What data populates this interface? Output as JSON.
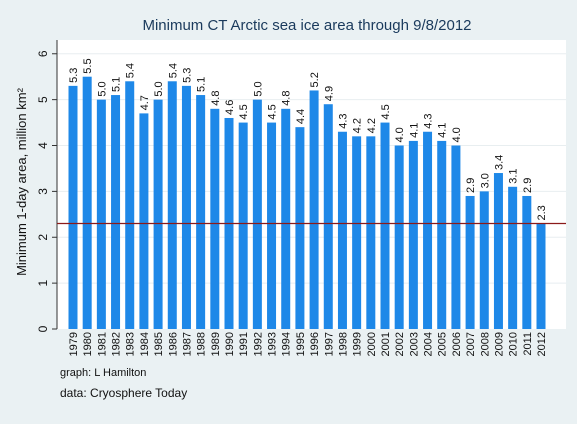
{
  "chart_data": {
    "type": "bar",
    "title": "Minimum CT Arctic sea ice area through 9/8/2012",
    "ylabel": "Minimum 1-day area, million km²",
    "xlabel": "",
    "ylim": [
      0,
      6.3
    ],
    "yticks": [
      0,
      1,
      2,
      3,
      4,
      5,
      6
    ],
    "grid": true,
    "legend": "none",
    "reference_line": 2.3,
    "categories": [
      "1979",
      "1980",
      "1981",
      "1982",
      "1983",
      "1984",
      "1985",
      "1986",
      "1987",
      "1988",
      "1989",
      "1990",
      "1991",
      "1992",
      "1993",
      "1994",
      "1995",
      "1996",
      "1997",
      "1998",
      "1999",
      "2000",
      "2001",
      "2002",
      "2003",
      "2004",
      "2005",
      "2006",
      "2007",
      "2008",
      "2009",
      "2010",
      "2011",
      "2012"
    ],
    "values": [
      5.3,
      5.5,
      5.0,
      5.1,
      5.4,
      4.7,
      5.0,
      5.4,
      5.3,
      5.1,
      4.8,
      4.6,
      4.5,
      5.0,
      4.5,
      4.8,
      4.4,
      5.2,
      4.9,
      4.3,
      4.2,
      4.2,
      4.5,
      4.0,
      4.1,
      4.3,
      4.1,
      4.0,
      2.9,
      3.0,
      3.4,
      3.1,
      2.9,
      2.3
    ],
    "labels": [
      "5.3",
      "5.5",
      "5.0",
      "5.1",
      "5.4",
      "4.7",
      "5.0",
      "5.4",
      "5.3",
      "5.1",
      "4.8",
      "4.6",
      "4.5",
      "5.0",
      "4.5",
      "4.8",
      "4.4",
      "5.2",
      "4.9",
      "4.3",
      "4.2",
      "4.2",
      "4.5",
      "4.0",
      "4.1",
      "4.3",
      "4.1",
      "4.0",
      "2.9",
      "3.0",
      "3.4",
      "3.1",
      "2.9",
      "2.3"
    ]
  },
  "colors": {
    "bar": "#1e88e8",
    "reference_line": "#8b1a1a",
    "grid": "#e8eef0",
    "plot_background": "#ffffff",
    "page_background": "#eaf1f3",
    "title": "#1a3a5c",
    "text": "#111111"
  },
  "credits": {
    "graph": "graph:  L Hamilton",
    "data": "data:  Cryosphere Today"
  }
}
